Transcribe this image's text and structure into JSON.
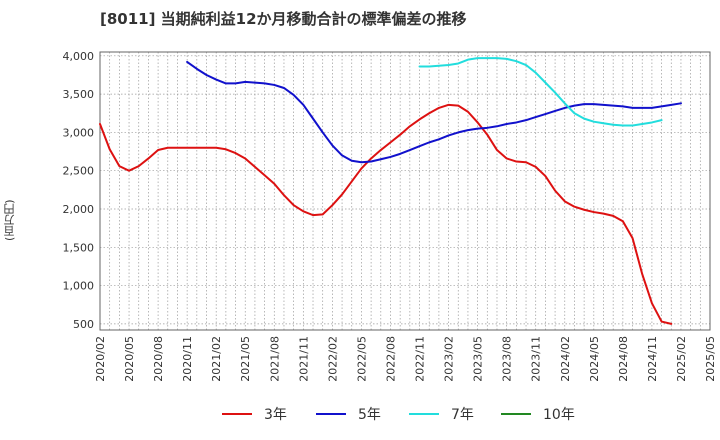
{
  "chart_data": {
    "type": "line",
    "title": "[8011]  当期純利益12か月移動合計の標準偏差の推移",
    "ylabel": "(百万円)",
    "xlabel": "",
    "ylim": [
      420,
      4050
    ],
    "yticks": [
      500,
      1000,
      1500,
      2000,
      2500,
      3000,
      3500,
      4000
    ],
    "ytick_labels": [
      "500",
      "1,000",
      "1,500",
      "2,000",
      "2,500",
      "3,000",
      "3,500",
      "4,000"
    ],
    "xticks": [
      "2020/02",
      "2020/05",
      "2020/08",
      "2020/11",
      "2021/02",
      "2021/05",
      "2021/08",
      "2021/11",
      "2022/02",
      "2022/05",
      "2022/08",
      "2022/11",
      "2023/02",
      "2023/05",
      "2023/08",
      "2023/11",
      "2024/02",
      "2024/05",
      "2024/08",
      "2024/11",
      "2025/02",
      "2025/05"
    ],
    "grid": true,
    "legend_position": "bottom",
    "series": [
      {
        "name": "3年",
        "color": "#dd1111",
        "start": "2020/02",
        "values": [
          3110,
          2780,
          2560,
          2500,
          2560,
          2660,
          2770,
          2800,
          2800,
          2800,
          2800,
          2800,
          2800,
          2780,
          2730,
          2660,
          2550,
          2440,
          2330,
          2180,
          2050,
          1970,
          1920,
          1930,
          2050,
          2190,
          2360,
          2530,
          2660,
          2770,
          2870,
          2970,
          3080,
          3170,
          3250,
          3320,
          3360,
          3350,
          3270,
          3130,
          2970,
          2770,
          2660,
          2620,
          2610,
          2550,
          2430,
          2240,
          2100,
          2030,
          1990,
          1960,
          1940,
          1910,
          1840,
          1620,
          1150,
          770,
          530,
          500
        ]
      },
      {
        "name": "5年",
        "color": "#1111cc",
        "start": "2020/11",
        "values": [
          3920,
          3830,
          3750,
          3690,
          3640,
          3640,
          3660,
          3650,
          3640,
          3620,
          3580,
          3490,
          3360,
          3180,
          3000,
          2830,
          2700,
          2630,
          2610,
          2620,
          2650,
          2680,
          2720,
          2770,
          2820,
          2870,
          2910,
          2960,
          3000,
          3030,
          3050,
          3060,
          3080,
          3110,
          3130,
          3160,
          3200,
          3240,
          3280,
          3320,
          3350,
          3370,
          3370,
          3360,
          3350,
          3340,
          3320,
          3320,
          3320,
          3340,
          3360,
          3380
        ]
      },
      {
        "name": "7年",
        "color": "#22dddd",
        "start": "2022/11",
        "values": [
          3860,
          3860,
          3870,
          3880,
          3900,
          3950,
          3970,
          3970,
          3970,
          3960,
          3930,
          3880,
          3780,
          3650,
          3520,
          3380,
          3250,
          3180,
          3140,
          3120,
          3100,
          3090,
          3090,
          3110,
          3130,
          3160
        ]
      },
      {
        "name": "10年",
        "color": "#228822",
        "start": "2025/02",
        "values": []
      }
    ]
  }
}
